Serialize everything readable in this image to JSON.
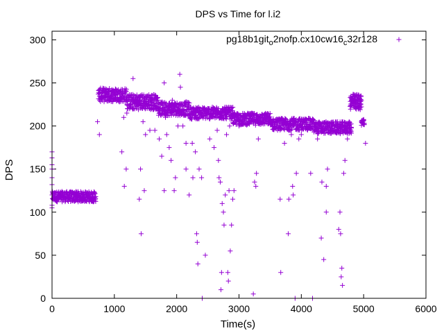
{
  "chart_data": {
    "type": "scatter",
    "title": "DPS vs Time for l.i2",
    "xlabel": "Time(s)",
    "ylabel": "DPS",
    "xlim": [
      0,
      6000
    ],
    "ylim": [
      0,
      310
    ],
    "xticks": [
      0,
      1000,
      2000,
      3000,
      4000,
      5000,
      6000
    ],
    "yticks": [
      0,
      50,
      100,
      150,
      200,
      250,
      300
    ],
    "xtick_labels": [
      "0",
      "1000",
      "2000",
      "3000",
      "4000",
      "5000",
      "6000"
    ],
    "ytick_labels": [
      "0",
      "50",
      "100",
      "150",
      "200",
      "250",
      "300"
    ],
    "grid": false,
    "legend": {
      "position": "top-right",
      "parts": [
        {
          "text": "pg18b1git",
          "sub": false
        },
        {
          "text": "o",
          "sub": true
        },
        {
          "text": "2nofp.cx10cw16",
          "sub": false
        },
        {
          "text": "c",
          "sub": true
        },
        {
          "text": "32r128",
          "sub": false
        }
      ]
    },
    "marker": "+",
    "color": "#9400d3",
    "series": [
      {
        "name": "pg18b1git_o2nofp.cx10cw16_c32r128",
        "segments": [
          {
            "x0": 0,
            "x1": 700,
            "base": 118,
            "jitter": 6,
            "step": 8
          },
          {
            "x0": 740,
            "x1": 1200,
            "base": 236,
            "jitter": 8,
            "step": 8
          },
          {
            "x0": 1200,
            "x1": 1700,
            "base": 228,
            "jitter": 9,
            "step": 8
          },
          {
            "x0": 1700,
            "x1": 2200,
            "base": 220,
            "jitter": 8,
            "step": 8
          },
          {
            "x0": 2200,
            "x1": 2900,
            "base": 215,
            "jitter": 7,
            "step": 8
          },
          {
            "x0": 2900,
            "x1": 3500,
            "base": 208,
            "jitter": 7,
            "step": 8
          },
          {
            "x0": 3500,
            "x1": 4200,
            "base": 202,
            "jitter": 7,
            "step": 8
          },
          {
            "x0": 4200,
            "x1": 4800,
            "base": 198,
            "jitter": 7,
            "step": 8
          },
          {
            "x0": 4780,
            "x1": 4960,
            "base": 228,
            "jitter": 9,
            "step": 6
          },
          {
            "x0": 4960,
            "x1": 5010,
            "base": 204,
            "jitter": 4,
            "step": 8
          }
        ],
        "outliers": [
          [
            0,
            163
          ],
          [
            0,
            170
          ],
          [
            0,
            155
          ],
          [
            0,
            150
          ],
          [
            0,
            140
          ],
          [
            0,
            132
          ],
          [
            0,
            120
          ],
          [
            0,
            105
          ],
          [
            0,
            108
          ],
          [
            730,
            205
          ],
          [
            760,
            190
          ],
          [
            1120,
            170
          ],
          [
            1150,
            210
          ],
          [
            1160,
            130
          ],
          [
            1190,
            150
          ],
          [
            1200,
            215
          ],
          [
            1300,
            255
          ],
          [
            1310,
            220
          ],
          [
            1400,
            115
          ],
          [
            1420,
            150
          ],
          [
            1430,
            75
          ],
          [
            1460,
            205
          ],
          [
            1480,
            125
          ],
          [
            1500,
            190
          ],
          [
            1570,
            195
          ],
          [
            1650,
            195
          ],
          [
            1700,
            230
          ],
          [
            1720,
            185
          ],
          [
            1760,
            165
          ],
          [
            1800,
            125
          ],
          [
            1800,
            250
          ],
          [
            1820,
            210
          ],
          [
            1840,
            190
          ],
          [
            1880,
            175
          ],
          [
            1910,
            160
          ],
          [
            1930,
            230
          ],
          [
            1960,
            125
          ],
          [
            1980,
            140
          ],
          [
            2020,
            200
          ],
          [
            2050,
            260
          ],
          [
            2060,
            245
          ],
          [
            2100,
            200
          ],
          [
            2150,
            150
          ],
          [
            2150,
            180
          ],
          [
            2200,
            120
          ],
          [
            2250,
            180
          ],
          [
            2260,
            140
          ],
          [
            2300,
            170
          ],
          [
            2320,
            75
          ],
          [
            2330,
            65
          ],
          [
            2340,
            40
          ],
          [
            2360,
            150
          ],
          [
            2400,
            140
          ],
          [
            2410,
            0
          ],
          [
            2460,
            50
          ],
          [
            2530,
            185
          ],
          [
            2600,
            175
          ],
          [
            2650,
            195
          ],
          [
            2670,
            160
          ],
          [
            2680,
            140
          ],
          [
            2700,
            135
          ],
          [
            2710,
            10
          ],
          [
            2720,
            30
          ],
          [
            2730,
            110
          ],
          [
            2750,
            100
          ],
          [
            2760,
            85
          ],
          [
            2780,
            120
          ],
          [
            2800,
            190
          ],
          [
            2820,
            30
          ],
          [
            2830,
            20
          ],
          [
            2840,
            125
          ],
          [
            2850,
            200
          ],
          [
            2860,
            55
          ],
          [
            2880,
            85
          ],
          [
            2900,
            115
          ],
          [
            2920,
            125
          ],
          [
            3000,
            200
          ],
          [
            3050,
            205
          ],
          [
            3230,
            5
          ],
          [
            3250,
            135
          ],
          [
            3270,
            130
          ],
          [
            3280,
            145
          ],
          [
            3310,
            185
          ],
          [
            3660,
            115
          ],
          [
            3670,
            30
          ],
          [
            3730,
            180
          ],
          [
            3790,
            75
          ],
          [
            3800,
            115
          ],
          [
            3840,
            190
          ],
          [
            3860,
            130
          ],
          [
            3870,
            120
          ],
          [
            3900,
            0
          ],
          [
            3920,
            145
          ],
          [
            3960,
            185
          ],
          [
            4000,
            190
          ],
          [
            4150,
            145
          ],
          [
            4180,
            0
          ],
          [
            4260,
            185
          ],
          [
            4320,
            70
          ],
          [
            4330,
            135
          ],
          [
            4350,
            195
          ],
          [
            4360,
            45
          ],
          [
            4400,
            100
          ],
          [
            4400,
            130
          ],
          [
            4420,
            150
          ],
          [
            4600,
            80
          ],
          [
            4620,
            100
          ],
          [
            4630,
            75
          ],
          [
            4640,
            25
          ],
          [
            4650,
            35
          ],
          [
            4660,
            15
          ],
          [
            4680,
            145
          ],
          [
            4700,
            160
          ],
          [
            4740,
            185
          ],
          [
            5030,
            180
          ]
        ]
      }
    ]
  }
}
